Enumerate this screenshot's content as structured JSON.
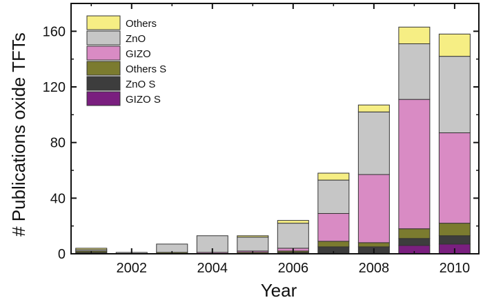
{
  "chart_data": {
    "type": "bar",
    "stacked": true,
    "xlabel": "Year",
    "ylabel": "# Publications oxide TFTs",
    "ylim": [
      0,
      180
    ],
    "yticks": [
      0,
      40,
      80,
      120,
      160
    ],
    "xlim": [
      2000.5,
      2010.6
    ],
    "xticks": [
      2002,
      2004,
      2006,
      2008,
      2010
    ],
    "categories": [
      2001,
      2002,
      2003,
      2004,
      2005,
      2006,
      2007,
      2008,
      2009,
      2010
    ],
    "legend_position": "top-left",
    "series": [
      {
        "name": "GIZO S",
        "color": "#7a1f7f",
        "values": [
          0,
          0,
          0,
          0,
          0,
          0,
          0,
          0,
          6,
          7
        ]
      },
      {
        "name": "ZnO S",
        "color": "#3d3d3d",
        "values": [
          1,
          0,
          0,
          0,
          0,
          1,
          5,
          5,
          5,
          6
        ]
      },
      {
        "name": "Others S",
        "color": "#7b7b2f",
        "values": [
          1,
          0,
          1,
          0,
          1,
          1,
          4,
          3,
          7,
          9
        ]
      },
      {
        "name": "GIZO",
        "color": "#d98bc4",
        "values": [
          0,
          0,
          0,
          1,
          1,
          2,
          20,
          49,
          93,
          65
        ]
      },
      {
        "name": "ZnO",
        "color": "#c6c6c6",
        "values": [
          1,
          1,
          6,
          12,
          10,
          18,
          24,
          45,
          40,
          55
        ]
      },
      {
        "name": "Others",
        "color": "#f6ee84",
        "values": [
          1,
          0,
          0,
          0,
          1,
          2,
          5,
          5,
          12,
          16
        ]
      }
    ],
    "legend_order": [
      "Others",
      "ZnO",
      "GIZO",
      "Others S",
      "ZnO S",
      "GIZO S"
    ]
  }
}
